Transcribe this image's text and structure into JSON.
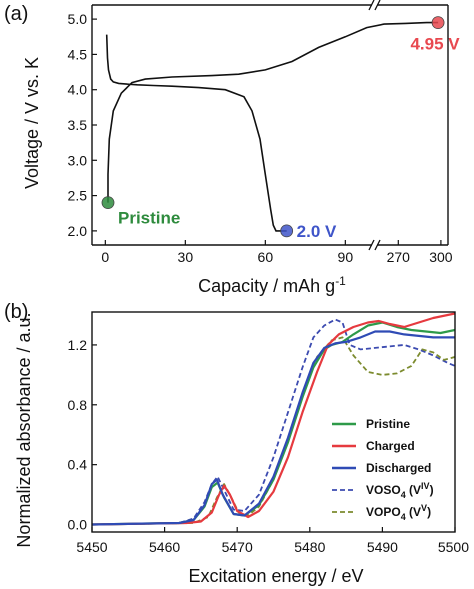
{
  "chart_data": [
    {
      "type": "line",
      "panel_label": "(a)",
      "xlabel": "Capacity / mAh g",
      "xlabel_sup": "-1",
      "ylabel": "Voltage / V vs. K",
      "x_broken": true,
      "xlim_left": [
        -5,
        100
      ],
      "xlim_right": [
        255,
        305
      ],
      "ylim": [
        1.8,
        5.2
      ],
      "xticks_left": [
        "0",
        "30",
        "60",
        "90"
      ],
      "xticks_right": [
        "270",
        "300"
      ],
      "yticks": [
        "2.0",
        "2.5",
        "3.0",
        "3.5",
        "4.0",
        "4.5",
        "5.0"
      ],
      "series": [
        {
          "color": "#111111",
          "x": [
            0.5,
            0.8,
            1.2,
            2,
            3,
            5,
            8,
            12,
            18,
            25,
            35,
            45,
            52,
            55,
            58,
            60,
            62,
            63,
            64,
            66,
            68
          ],
          "y": [
            4.78,
            4.45,
            4.28,
            4.15,
            4.11,
            4.09,
            4.08,
            4.07,
            4.06,
            4.05,
            4.03,
            4.0,
            3.9,
            3.7,
            3.3,
            2.8,
            2.3,
            2.08,
            2.0,
            2.0,
            2.0
          ]
        },
        {
          "color": "#111111",
          "x": [
            1,
            1,
            1.5,
            3,
            6,
            10,
            15,
            25,
            40,
            50,
            60,
            70,
            80,
            90,
            98,
            260,
            275,
            290,
            298
          ],
          "y": [
            2.4,
            2.8,
            3.3,
            3.7,
            3.95,
            4.1,
            4.15,
            4.18,
            4.2,
            4.22,
            4.28,
            4.4,
            4.6,
            4.75,
            4.88,
            4.93,
            4.94,
            4.95,
            4.95
          ]
        }
      ],
      "markers": [
        {
          "label": "Pristine",
          "x": 1,
          "y": 2.4,
          "color": "#2e8b3d"
        },
        {
          "label": "2.0 V",
          "x": 68,
          "y": 2.0,
          "color": "#3f55c9"
        },
        {
          "label": "4.95 V",
          "x": 298,
          "y": 4.95,
          "color": "#e8484f"
        }
      ]
    },
    {
      "type": "line",
      "panel_label": "(b)",
      "xlabel": "Excitation energy / eV",
      "ylabel": "Normalized absorbance / a.u.",
      "xlim": [
        5450,
        5500
      ],
      "ylim": [
        -0.05,
        1.42
      ],
      "xticks": [
        "5450",
        "5460",
        "5470",
        "5480",
        "5490",
        "5500"
      ],
      "yticks": [
        "0.0",
        "0.4",
        "0.8",
        "1.2"
      ],
      "legend": "right",
      "series": [
        {
          "name": "Pristine",
          "color": "#2e9a49",
          "dash": false,
          "x": [
            5450,
            5462,
            5464,
            5465.5,
            5466.5,
            5467.3,
            5468.2,
            5469.5,
            5471,
            5473,
            5475,
            5477,
            5479,
            5480.5,
            5482,
            5483,
            5484.5,
            5486,
            5488,
            5490,
            5492,
            5494,
            5496,
            5498,
            5500
          ],
          "y": [
            0.0,
            0.01,
            0.03,
            0.12,
            0.25,
            0.28,
            0.18,
            0.07,
            0.06,
            0.13,
            0.3,
            0.55,
            0.85,
            1.05,
            1.17,
            1.2,
            1.22,
            1.27,
            1.33,
            1.35,
            1.32,
            1.3,
            1.29,
            1.28,
            1.3
          ]
        },
        {
          "name": "Charged",
          "color": "#e63a3f",
          "dash": false,
          "x": [
            5450,
            5463,
            5465,
            5466.5,
            5467.5,
            5468.2,
            5469,
            5470,
            5471.5,
            5473,
            5475,
            5477,
            5479,
            5481,
            5482.5,
            5484,
            5486,
            5488,
            5489.5,
            5491,
            5493,
            5495,
            5497,
            5500
          ],
          "y": [
            0.0,
            0.01,
            0.02,
            0.08,
            0.2,
            0.26,
            0.2,
            0.09,
            0.05,
            0.09,
            0.22,
            0.45,
            0.75,
            1.02,
            1.2,
            1.27,
            1.32,
            1.35,
            1.36,
            1.34,
            1.32,
            1.35,
            1.38,
            1.41
          ]
        },
        {
          "name": "Discharged",
          "color": "#2f4bb5",
          "dash": false,
          "x": [
            5450,
            5462,
            5464,
            5465.5,
            5466.5,
            5467.2,
            5468,
            5469.5,
            5471,
            5473,
            5475,
            5477,
            5479,
            5480.5,
            5482,
            5483.5,
            5485,
            5487,
            5489,
            5491,
            5493,
            5495,
            5497,
            5500
          ],
          "y": [
            0.0,
            0.01,
            0.03,
            0.13,
            0.27,
            0.3,
            0.2,
            0.07,
            0.06,
            0.14,
            0.32,
            0.58,
            0.88,
            1.08,
            1.18,
            1.21,
            1.22,
            1.25,
            1.29,
            1.29,
            1.27,
            1.26,
            1.25,
            1.25
          ]
        },
        {
          "name": "VOSO",
          "name_sub": "4",
          "name_suffix": " (V",
          "name_sup": "IV",
          "name_end": ")",
          "color": "#3c4bb0",
          "dash": true,
          "x": [
            5450,
            5462,
            5464,
            5465.5,
            5466.5,
            5467.3,
            5468.3,
            5469.5,
            5471,
            5473,
            5475,
            5477,
            5479,
            5480.5,
            5482,
            5483.5,
            5484.5,
            5485.5,
            5487,
            5489,
            5491,
            5493,
            5495,
            5497,
            5499,
            5500
          ],
          "y": [
            0.0,
            0.01,
            0.04,
            0.15,
            0.27,
            0.32,
            0.22,
            0.1,
            0.09,
            0.2,
            0.45,
            0.75,
            1.05,
            1.25,
            1.33,
            1.37,
            1.35,
            1.2,
            1.17,
            1.18,
            1.19,
            1.2,
            1.17,
            1.13,
            1.08,
            1.06
          ]
        },
        {
          "name": "VOPO",
          "name_sub": "4",
          "name_suffix": " (V",
          "name_sup": "V",
          "name_end": ")",
          "color": "#7c8b2e",
          "dash": true,
          "x": [
            5450,
            5464,
            5466,
            5467.2,
            5468.2,
            5469,
            5470.2,
            5471.5,
            5473,
            5475,
            5477,
            5479,
            5481,
            5483,
            5484.5,
            5486,
            5488,
            5490,
            5492,
            5494,
            5495.5,
            5497,
            5498.5,
            5500
          ],
          "y": [
            0.0,
            0.01,
            0.05,
            0.18,
            0.27,
            0.2,
            0.08,
            0.06,
            0.12,
            0.3,
            0.55,
            0.88,
            1.12,
            1.23,
            1.25,
            1.13,
            1.02,
            1.0,
            1.01,
            1.06,
            1.17,
            1.15,
            1.1,
            1.12
          ]
        }
      ]
    }
  ]
}
